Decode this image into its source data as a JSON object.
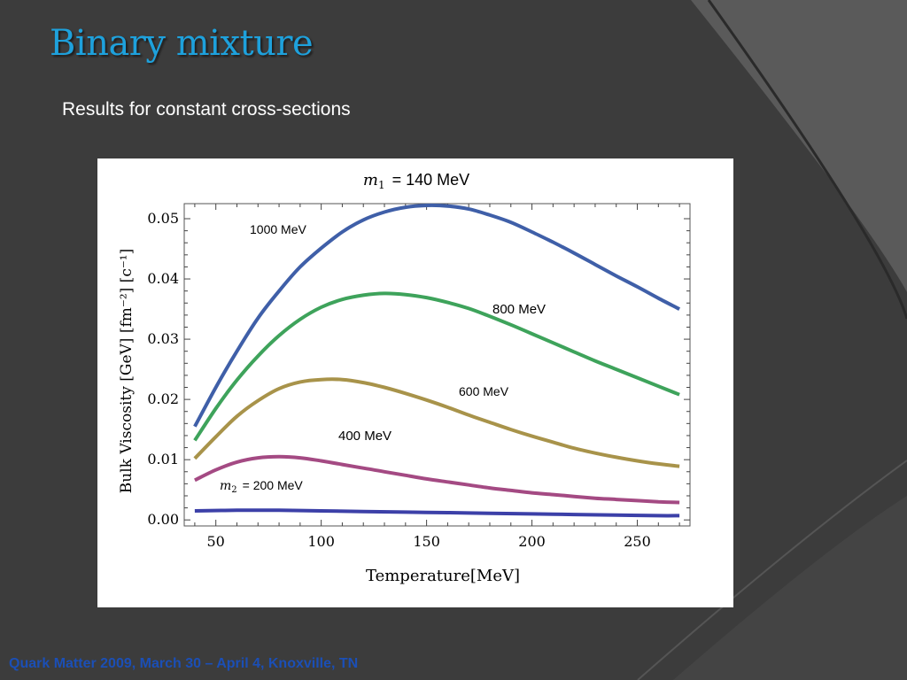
{
  "slide": {
    "title": "Binary mixture",
    "subtitle": "Results for constant cross-sections",
    "footer": "Quark Matter 2009, March 30 – April 4, Knoxville, TN"
  },
  "colors": {
    "background": "#3d3d3d",
    "title": "#1ea1dc",
    "footer": "#1b4fb6"
  },
  "chart_data": {
    "type": "line",
    "title_var": "m",
    "title_sub": "1",
    "title_rest": "= 140 MeV",
    "xlabel": "Temperature[MeV]",
    "ylabel": "Bulk Viscosity [GeV] [fm⁻²] [c⁻¹]",
    "xlim": [
      35,
      275
    ],
    "ylim": [
      -0.001,
      0.0525
    ],
    "xticks": [
      50,
      100,
      150,
      200,
      250
    ],
    "yticks": [
      0.0,
      0.01,
      0.02,
      0.03,
      0.04,
      0.05
    ],
    "ytick_labels": [
      "0.00",
      "0.01",
      "0.02",
      "0.03",
      "0.04",
      "0.05"
    ],
    "grid": false,
    "series": [
      {
        "name": "1000 MeV",
        "color": "#3f5fa8",
        "x": [
          40,
          50,
          60,
          70,
          80,
          90,
          100,
          110,
          120,
          130,
          140,
          150,
          160,
          170,
          180,
          190,
          200,
          210,
          220,
          230,
          240,
          250,
          260,
          270
        ],
        "y": [
          0.0155,
          0.022,
          0.028,
          0.0335,
          0.038,
          0.042,
          0.0451,
          0.0478,
          0.0498,
          0.0511,
          0.0519,
          0.0522,
          0.0521,
          0.0516,
          0.0506,
          0.0494,
          0.0478,
          0.0461,
          0.0443,
          0.0424,
          0.0405,
          0.0387,
          0.0368,
          0.035
        ]
      },
      {
        "name": "800 MeV",
        "color": "#3ea35b",
        "x": [
          40,
          50,
          60,
          70,
          80,
          90,
          100,
          110,
          120,
          130,
          140,
          150,
          160,
          170,
          180,
          190,
          200,
          210,
          220,
          230,
          240,
          250,
          260,
          270
        ],
        "y": [
          0.0132,
          0.0185,
          0.0232,
          0.0272,
          0.0306,
          0.0333,
          0.0353,
          0.0366,
          0.0373,
          0.0376,
          0.0374,
          0.0369,
          0.0361,
          0.0351,
          0.0338,
          0.0324,
          0.0309,
          0.0294,
          0.0279,
          0.0264,
          0.025,
          0.0236,
          0.0222,
          0.0208
        ]
      },
      {
        "name": "600 MeV",
        "color": "#a8934a",
        "x": [
          40,
          50,
          60,
          70,
          80,
          90,
          100,
          110,
          120,
          130,
          140,
          150,
          160,
          170,
          180,
          190,
          200,
          210,
          220,
          230,
          240,
          250,
          260,
          270
        ],
        "y": [
          0.0102,
          0.0138,
          0.0172,
          0.0198,
          0.0218,
          0.0229,
          0.0233,
          0.0233,
          0.0228,
          0.022,
          0.021,
          0.0199,
          0.0187,
          0.0174,
          0.0162,
          0.015,
          0.0139,
          0.0129,
          0.0119,
          0.0111,
          0.0104,
          0.0098,
          0.0093,
          0.0089
        ]
      },
      {
        "name": "400 MeV",
        "color": "#a44a83",
        "x": [
          40,
          50,
          60,
          70,
          80,
          90,
          100,
          110,
          120,
          130,
          140,
          150,
          160,
          170,
          180,
          190,
          200,
          210,
          220,
          230,
          240,
          250,
          260,
          270
        ],
        "y": [
          0.0066,
          0.0083,
          0.0096,
          0.0103,
          0.0105,
          0.0103,
          0.0098,
          0.0092,
          0.0086,
          0.008,
          0.0074,
          0.0068,
          0.0063,
          0.0058,
          0.0053,
          0.0049,
          0.0045,
          0.0042,
          0.0039,
          0.0036,
          0.0034,
          0.0032,
          0.003,
          0.0029
        ]
      },
      {
        "name": "200 MeV",
        "color": "#3c40a8",
        "x": [
          40,
          60,
          80,
          100,
          120,
          140,
          160,
          180,
          200,
          220,
          240,
          260,
          270
        ],
        "y": [
          0.0015,
          0.0016,
          0.0016,
          0.0015,
          0.0014,
          0.0013,
          0.0012,
          0.0011,
          0.001,
          0.0009,
          0.0008,
          0.0007,
          0.0007
        ]
      }
    ],
    "annotations": {
      "s1000": "1000 MeV",
      "s800": "800 MeV",
      "s600": "600 MeV",
      "s400": "400 MeV",
      "s200_var": "m",
      "s200_sub": "2",
      "s200_rest": "= 200 MeV"
    }
  }
}
